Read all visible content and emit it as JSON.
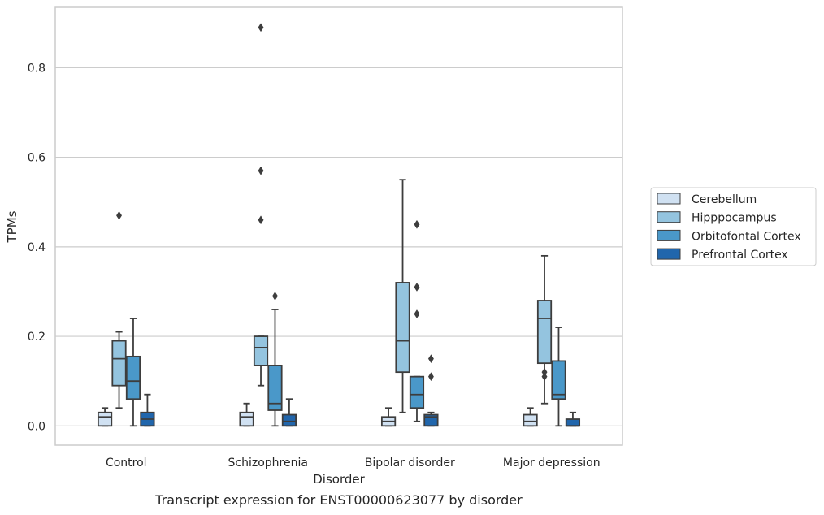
{
  "chart_data": {
    "type": "box",
    "caption": "Transcript expression for ENST00000623077 by disorder",
    "xlabel": "Disorder",
    "ylabel": "TPMs",
    "ylim": [
      -0.043,
      0.935
    ],
    "yticks": [
      0.0,
      0.2,
      0.4,
      0.6,
      0.8
    ],
    "ytick_labels": [
      "0.0",
      "0.2",
      "0.4",
      "0.6",
      "0.8"
    ],
    "grid": "horizontal",
    "legend_position": "right",
    "categories": [
      "Control",
      "Schizophrenia",
      "Bipolar disorder",
      "Major depression"
    ],
    "series": [
      {
        "name": "Cerebellum",
        "color": "#d0e1f2",
        "boxes": [
          {
            "whisker_low": 0.0,
            "q1": 0.0,
            "median": 0.02,
            "q3": 0.03,
            "whisker_high": 0.04,
            "outliers": []
          },
          {
            "whisker_low": 0.0,
            "q1": 0.0,
            "median": 0.02,
            "q3": 0.03,
            "whisker_high": 0.05,
            "outliers": []
          },
          {
            "whisker_low": 0.0,
            "q1": 0.0,
            "median": 0.01,
            "q3": 0.02,
            "whisker_high": 0.04,
            "outliers": []
          },
          {
            "whisker_low": 0.0,
            "q1": 0.0,
            "median": 0.01,
            "q3": 0.025,
            "whisker_high": 0.04,
            "outliers": []
          }
        ]
      },
      {
        "name": "Hipppocampus",
        "color": "#94c4df",
        "boxes": [
          {
            "whisker_low": 0.04,
            "q1": 0.09,
            "median": 0.15,
            "q3": 0.19,
            "whisker_high": 0.21,
            "outliers": [
              0.47
            ]
          },
          {
            "whisker_low": 0.09,
            "q1": 0.135,
            "median": 0.175,
            "q3": 0.2,
            "whisker_high": 0.2,
            "outliers": [
              0.89,
              0.57,
              0.46
            ]
          },
          {
            "whisker_low": 0.03,
            "q1": 0.12,
            "median": 0.19,
            "q3": 0.32,
            "whisker_high": 0.55,
            "outliers": []
          },
          {
            "whisker_low": 0.05,
            "q1": 0.14,
            "median": 0.24,
            "q3": 0.28,
            "whisker_high": 0.38,
            "outliers": [
              0.12,
              0.11
            ]
          }
        ]
      },
      {
        "name": "Orbitofontal Cortex",
        "color": "#4a98c9",
        "boxes": [
          {
            "whisker_low": 0.0,
            "q1": 0.06,
            "median": 0.1,
            "q3": 0.155,
            "whisker_high": 0.24,
            "outliers": []
          },
          {
            "whisker_low": 0.0,
            "q1": 0.035,
            "median": 0.05,
            "q3": 0.135,
            "whisker_high": 0.26,
            "outliers": [
              0.29
            ]
          },
          {
            "whisker_low": 0.01,
            "q1": 0.04,
            "median": 0.07,
            "q3": 0.11,
            "whisker_high": 0.11,
            "outliers": [
              0.45,
              0.31,
              0.25
            ]
          },
          {
            "whisker_low": 0.0,
            "q1": 0.06,
            "median": 0.07,
            "q3": 0.145,
            "whisker_high": 0.22,
            "outliers": []
          }
        ]
      },
      {
        "name": "Prefrontal Cortex",
        "color": "#2166ac",
        "boxes": [
          {
            "whisker_low": 0.0,
            "q1": 0.0,
            "median": 0.015,
            "q3": 0.03,
            "whisker_high": 0.07,
            "outliers": []
          },
          {
            "whisker_low": 0.0,
            "q1": 0.0,
            "median": 0.01,
            "q3": 0.025,
            "whisker_high": 0.06,
            "outliers": []
          },
          {
            "whisker_low": 0.0,
            "q1": 0.0,
            "median": 0.02,
            "q3": 0.025,
            "whisker_high": 0.03,
            "outliers": [
              0.15,
              0.11
            ]
          },
          {
            "whisker_low": 0.0,
            "q1": 0.0,
            "median": 0.0,
            "q3": 0.015,
            "whisker_high": 0.03,
            "outliers": []
          }
        ]
      }
    ]
  }
}
